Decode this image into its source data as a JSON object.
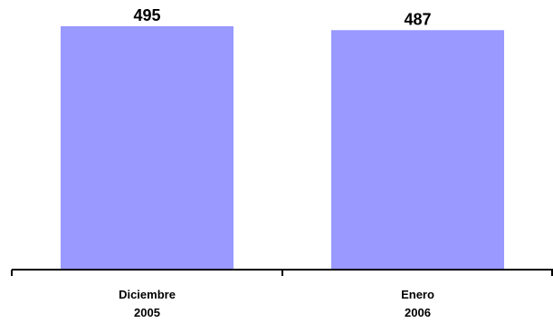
{
  "chart_data": {
    "type": "bar",
    "categories": [
      [
        "Diciembre",
        "2005"
      ],
      [
        "Enero",
        "2006"
      ]
    ],
    "values": [
      495,
      487
    ],
    "data_labels": [
      "495",
      "487"
    ],
    "bar_color": "#9999FF",
    "axis_color": "#000000",
    "grid": false,
    "legend": "none"
  }
}
